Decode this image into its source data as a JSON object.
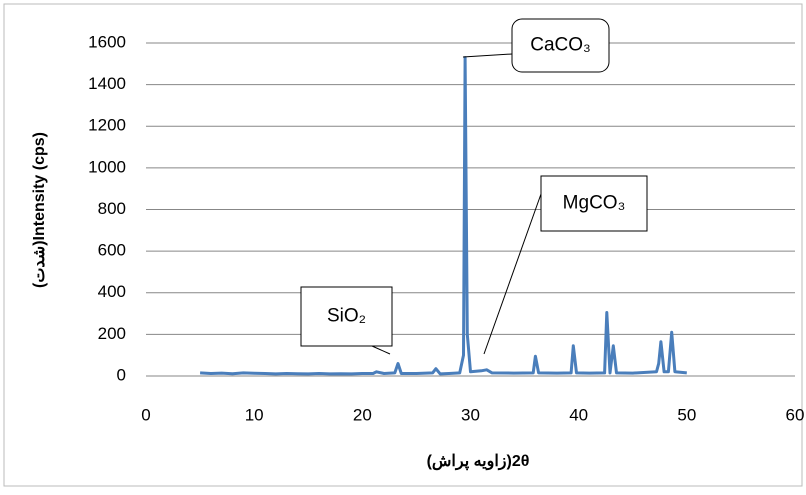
{
  "chart_data": {
    "type": "line",
    "x_label": "(زاویه پراش)2θ",
    "y_label": "(شدت)Intensity (cps)",
    "series": [
      {
        "color": "#4a7ebb",
        "x": [
          5,
          6,
          7,
          8,
          9,
          10,
          11,
          12,
          13,
          14,
          15,
          16,
          17,
          18,
          19,
          20,
          21,
          21.3,
          22,
          23,
          23.3,
          23.6,
          25,
          26.5,
          26.8,
          27.2,
          28,
          29,
          29.35,
          29.5,
          29.7,
          30,
          31,
          31.5,
          32,
          34,
          35.8,
          36,
          36.3,
          38,
          39.3,
          39.5,
          39.8,
          41,
          42.4,
          42.6,
          42.9,
          43.2,
          43.5,
          45,
          47.2,
          47.4,
          47.6,
          47.9,
          48.3,
          48.6,
          48.9,
          50
        ],
        "values": [
          15,
          12,
          14,
          11,
          15,
          13,
          12,
          10,
          12,
          11,
          10,
          12,
          10,
          11,
          10,
          12,
          12,
          20,
          12,
          15,
          60,
          12,
          12,
          15,
          35,
          10,
          12,
          15,
          100,
          1530,
          200,
          20,
          25,
          30,
          15,
          14,
          15,
          95,
          15,
          14,
          15,
          145,
          15,
          14,
          15,
          305,
          15,
          145,
          15,
          14,
          20,
          60,
          165,
          20,
          20,
          210,
          20,
          15
        ]
      }
    ],
    "xlim": [
      0,
      60
    ],
    "xticks": [
      0,
      10,
      20,
      30,
      40,
      50,
      60
    ],
    "ylim": [
      0,
      1600
    ],
    "yticks": [
      0,
      200,
      400,
      600,
      800,
      1000,
      1200,
      1400,
      1600
    ],
    "grid": true,
    "annotations": [
      "CaCO₃",
      "MgCO₃",
      "SiO₂"
    ]
  }
}
